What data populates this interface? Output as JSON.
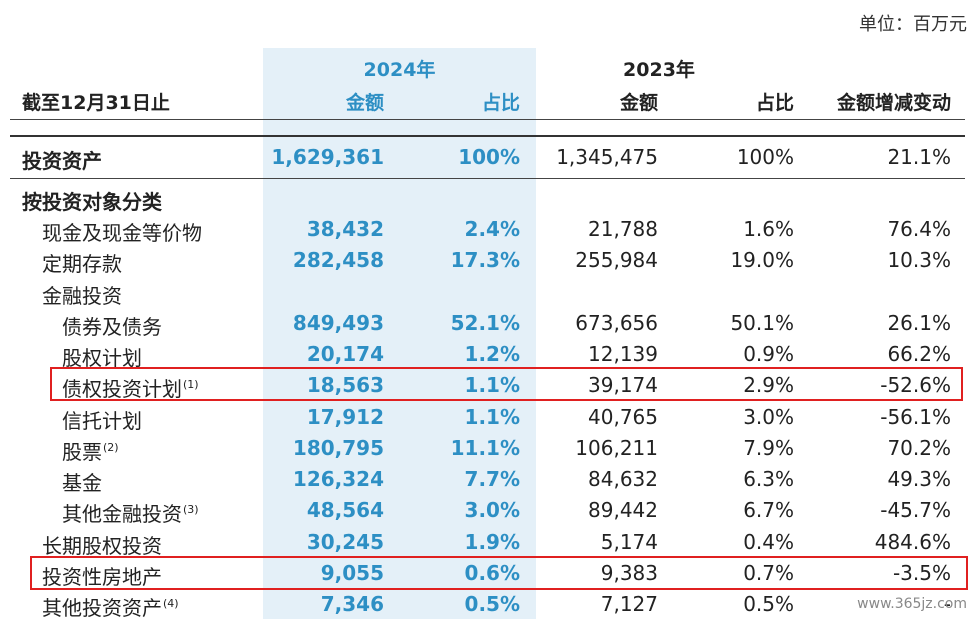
{
  "unit": "单位：百万元",
  "header": {
    "col_label": "截至12月31日止",
    "year_2024": "2024年",
    "year_2023": "2023年",
    "c1": "金额",
    "c2": "占比",
    "c3": "金额",
    "c4": "占比",
    "c5": "金额增减变动"
  },
  "rows": [
    {
      "label": "投资资产",
      "note": "",
      "level": 0,
      "bold": true,
      "v1": "1,629,361",
      "v2": "100%",
      "v3": "1,345,475",
      "v4": "100%",
      "v5": "21.1%"
    },
    {
      "label": "按投资对象分类",
      "note": "",
      "level": 0,
      "bold": true,
      "v1": "",
      "v2": "",
      "v3": "",
      "v4": "",
      "v5": ""
    },
    {
      "label": "现金及现金等价物",
      "note": "",
      "level": 1,
      "bold": false,
      "v1": "38,432",
      "v2": "2.4%",
      "v3": "21,788",
      "v4": "1.6%",
      "v5": "76.4%"
    },
    {
      "label": "定期存款",
      "note": "",
      "level": 1,
      "bold": false,
      "v1": "282,458",
      "v2": "17.3%",
      "v3": "255,984",
      "v4": "19.0%",
      "v5": "10.3%"
    },
    {
      "label": "金融投资",
      "note": "",
      "level": 1,
      "bold": false,
      "v1": "",
      "v2": "",
      "v3": "",
      "v4": "",
      "v5": ""
    },
    {
      "label": "债券及债务",
      "note": "",
      "level": 2,
      "bold": false,
      "v1": "849,493",
      "v2": "52.1%",
      "v3": "673,656",
      "v4": "50.1%",
      "v5": "26.1%"
    },
    {
      "label": "股权计划",
      "note": "",
      "level": 2,
      "bold": false,
      "v1": "20,174",
      "v2": "1.2%",
      "v3": "12,139",
      "v4": "0.9%",
      "v5": "66.2%"
    },
    {
      "label": "债权投资计划",
      "note": "(1)",
      "level": 2,
      "bold": false,
      "v1": "18,563",
      "v2": "1.1%",
      "v3": "39,174",
      "v4": "2.9%",
      "v5": "-52.6%"
    },
    {
      "label": "信托计划",
      "note": "",
      "level": 2,
      "bold": false,
      "v1": "17,912",
      "v2": "1.1%",
      "v3": "40,765",
      "v4": "3.0%",
      "v5": "-56.1%"
    },
    {
      "label": "股票",
      "note": "(2)",
      "level": 2,
      "bold": false,
      "v1": "180,795",
      "v2": "11.1%",
      "v3": "106,211",
      "v4": "7.9%",
      "v5": "70.2%"
    },
    {
      "label": "基金",
      "note": "",
      "level": 2,
      "bold": false,
      "v1": "126,324",
      "v2": "7.7%",
      "v3": "84,632",
      "v4": "6.3%",
      "v5": "49.3%"
    },
    {
      "label": "其他金融投资",
      "note": "(3)",
      "level": 2,
      "bold": false,
      "v1": "48,564",
      "v2": "3.0%",
      "v3": "89,442",
      "v4": "6.7%",
      "v5": "-45.7%"
    },
    {
      "label": "长期股权投资",
      "note": "",
      "level": 1,
      "bold": false,
      "v1": "30,245",
      "v2": "1.9%",
      "v3": "5,174",
      "v4": "0.4%",
      "v5": "484.6%"
    },
    {
      "label": "投资性房地产",
      "note": "",
      "level": 1,
      "bold": false,
      "v1": "9,055",
      "v2": "0.6%",
      "v3": "9,383",
      "v4": "0.7%",
      "v5": "-3.5%"
    },
    {
      "label": "其他投资资产",
      "note": "(4)",
      "level": 1,
      "bold": false,
      "v1": "7,346",
      "v2": "0.5%",
      "v3": "7,127",
      "v4": "0.5%",
      "v5": "-"
    }
  ],
  "watermark": "www.365jz.com"
}
